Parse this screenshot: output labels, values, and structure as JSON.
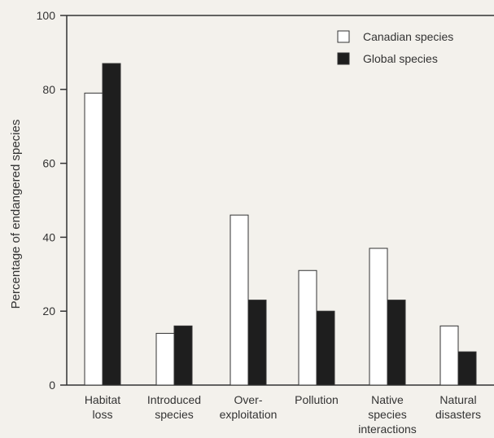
{
  "chart_data": {
    "type": "bar",
    "title": "",
    "xlabel": "",
    "ylabel": "Percentage of endangered species",
    "ylim": [
      0,
      100
    ],
    "yticks": [
      0,
      20,
      40,
      60,
      80,
      100
    ],
    "grid": false,
    "legend_position": "top-right",
    "categories": [
      [
        "Habitat",
        "loss"
      ],
      [
        "Introduced",
        "species"
      ],
      [
        "Over-",
        "exploitation"
      ],
      [
        "Pollution"
      ],
      [
        "Native",
        "species",
        "interactions"
      ],
      [
        "Natural",
        "disasters"
      ]
    ],
    "series": [
      {
        "name": "Canadian species",
        "values": [
          79,
          14,
          46,
          31,
          37,
          16
        ],
        "color": "#ffffff"
      },
      {
        "name": "Global species",
        "values": [
          87,
          16,
          23,
          20,
          23,
          9
        ],
        "color": "#1e1e1e"
      }
    ]
  }
}
